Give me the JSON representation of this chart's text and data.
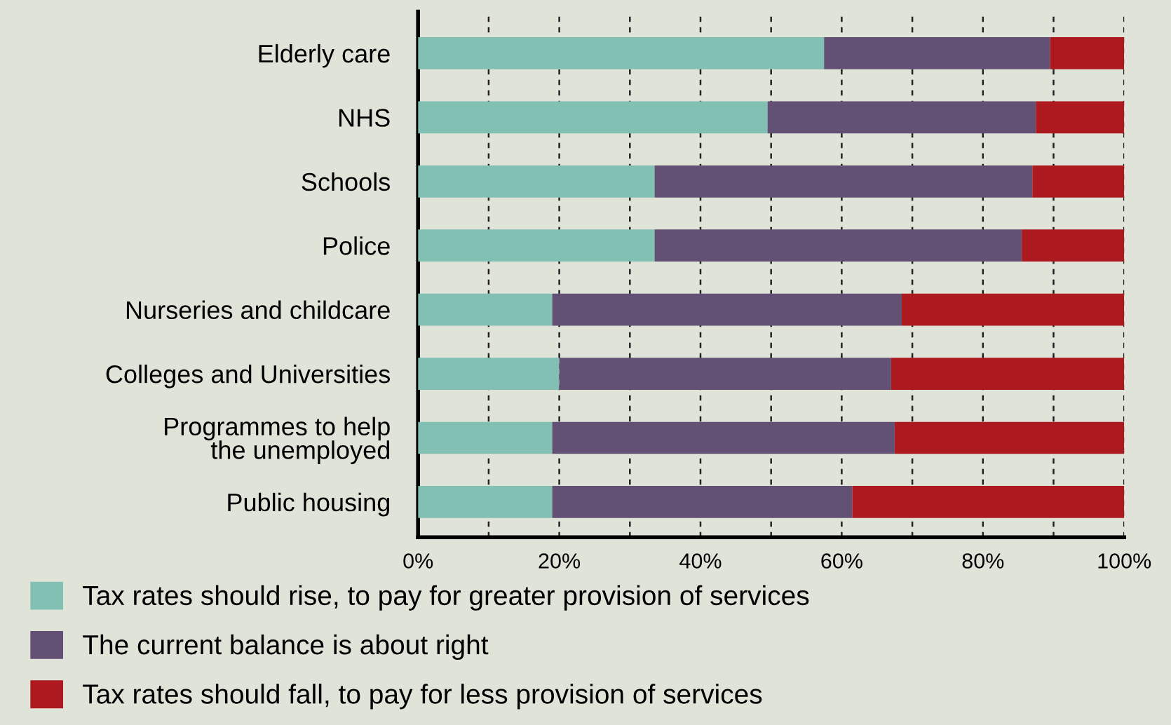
{
  "chart_data": {
    "type": "bar",
    "orientation": "horizontal",
    "stacked": true,
    "categories": [
      "Elderly care",
      "NHS",
      "Schools",
      "Police",
      "Nurseries and childcare",
      "Colleges and Universities",
      "Programmes to help\nthe unemployed",
      "Public housing"
    ],
    "series": [
      {
        "name": "Tax rates should rise, to pay for greater provision of services",
        "color": "#82c0b4",
        "values": [
          57.5,
          49.5,
          33.5,
          33.5,
          19,
          20,
          19,
          19
        ]
      },
      {
        "name": "The current balance is about right",
        "color": "#625174",
        "values": [
          32,
          38,
          53.5,
          52,
          49.5,
          47,
          48.5,
          42.5
        ]
      },
      {
        "name": "Tax rates should fall, to pay for less provision of services",
        "color": "#ac1a20",
        "values": [
          10.5,
          12.5,
          13,
          14.5,
          31.5,
          33,
          32.5,
          38.5
        ]
      }
    ],
    "xlim": [
      0,
      100
    ],
    "xticks": [
      {
        "value": 0,
        "label": "0%"
      },
      {
        "value": 10,
        "label": null
      },
      {
        "value": 20,
        "label": "20%"
      },
      {
        "value": 30,
        "label": null
      },
      {
        "value": 40,
        "label": "40%"
      },
      {
        "value": 50,
        "label": null
      },
      {
        "value": 60,
        "label": "60%"
      },
      {
        "value": 70,
        "label": null
      },
      {
        "value": 80,
        "label": "80%"
      },
      {
        "value": 90,
        "label": null
      },
      {
        "value": 100,
        "label": "100%"
      }
    ],
    "grid": "x",
    "legend": "bottom"
  }
}
